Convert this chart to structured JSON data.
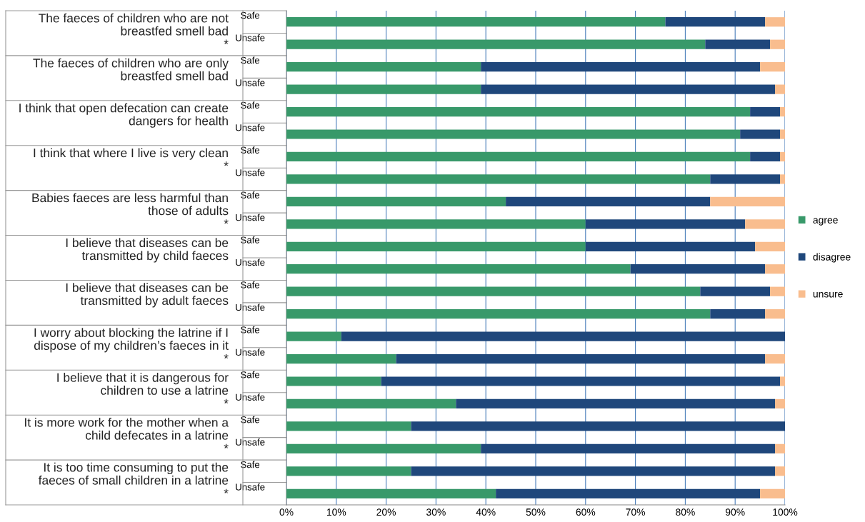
{
  "chart_data": {
    "type": "bar",
    "orientation": "horizontal",
    "stacked": true,
    "categories": [
      "Safe",
      "Unsafe",
      "Safe",
      "Unsafe",
      "Safe",
      "Unsafe",
      "Safe",
      "Unsafe",
      "Safe",
      "Unsafe",
      "Safe",
      "Unsafe",
      "Safe",
      "Unsafe",
      "Safe",
      "Unsafe",
      "Safe",
      "Unsafe",
      "Safe",
      "Unsafe",
      "Safe",
      "Unsafe"
    ],
    "series": [
      {
        "name": "agree",
        "color": "#38996a",
        "values": [
          76,
          84,
          39,
          39,
          93,
          91,
          93,
          85,
          44,
          60,
          60,
          69,
          83,
          85,
          11,
          22,
          19,
          34,
          25,
          39,
          25,
          42
        ]
      },
      {
        "name": "disagree",
        "color": "#1f477b",
        "values": [
          20,
          13,
          56,
          59,
          6,
          8,
          6,
          14,
          41,
          32,
          34,
          27,
          14,
          11,
          89,
          74,
          80,
          64,
          75,
          59,
          73,
          53
        ]
      },
      {
        "name": "unsure",
        "color": "#f9bd8e",
        "values": [
          4,
          3,
          5,
          2,
          1,
          1,
          1,
          1,
          15,
          8,
          6,
          4,
          3,
          4,
          0,
          4,
          1,
          2,
          0,
          2,
          2,
          5
        ]
      }
    ],
    "annotations": [
      "The faeces of children who are not\nbreastfed smell bad\n*",
      "The faeces of children who are only\nbreastfed smell bad",
      "I think that open defecation can create\ndangers for health",
      "I think that where I live is very clean\n*",
      "Babies faeces are less harmful than\nthose of adults\n*",
      "I believe that diseases can be\ntransmitted by child faeces",
      "I believe that diseases can be\ntransmitted by adult faeces",
      "I worry about blocking the latrine if I\ndispose of my children’s faeces in it\n*",
      "I believe that it is dangerous for\nchildren to use a latrine\n*",
      "It is more work for the mother when a\nchild defecates in a latrine\n*",
      "It is too time consuming to put the\nfaeces of small children in a latrine\n*"
    ],
    "xlim": [
      0,
      100
    ],
    "xticks": [
      {
        "value": 0,
        "label": "0%"
      },
      {
        "value": 10,
        "label": "10%"
      },
      {
        "value": 20,
        "label": "20%"
      },
      {
        "value": 30,
        "label": "30%"
      },
      {
        "value": 40,
        "label": "40%"
      },
      {
        "value": 50,
        "label": "50%"
      },
      {
        "value": 60,
        "label": "60%"
      },
      {
        "value": 70,
        "label": "70%"
      },
      {
        "value": 80,
        "label": "80%"
      },
      {
        "value": 90,
        "label": "90%"
      },
      {
        "value": 100,
        "label": "100%"
      }
    ],
    "grid": "x",
    "legend": "right"
  }
}
